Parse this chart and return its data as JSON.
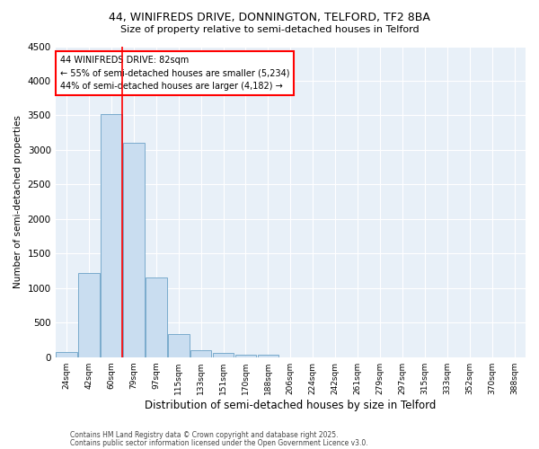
{
  "title1": "44, WINIFREDS DRIVE, DONNINGTON, TELFORD, TF2 8BA",
  "title2": "Size of property relative to semi-detached houses in Telford",
  "xlabel": "Distribution of semi-detached houses by size in Telford",
  "ylabel": "Number of semi-detached properties",
  "categories": [
    "24sqm",
    "42sqm",
    "60sqm",
    "79sqm",
    "97sqm",
    "115sqm",
    "133sqm",
    "151sqm",
    "170sqm",
    "188sqm",
    "206sqm",
    "224sqm",
    "242sqm",
    "261sqm",
    "279sqm",
    "297sqm",
    "315sqm",
    "333sqm",
    "352sqm",
    "370sqm",
    "388sqm"
  ],
  "values": [
    75,
    1220,
    3520,
    3100,
    1150,
    340,
    105,
    55,
    40,
    30,
    0,
    0,
    0,
    0,
    0,
    0,
    0,
    0,
    0,
    0,
    0
  ],
  "bar_color": "#c9ddf0",
  "bar_edgecolor": "#7aabcc",
  "vline_x": 2.5,
  "vline_color": "red",
  "annotation_title": "44 WINIFREDS DRIVE: 82sqm",
  "annotation_line1": "← 55% of semi-detached houses are smaller (5,234)",
  "annotation_line2": "44% of semi-detached houses are larger (4,182) →",
  "ylim": [
    0,
    4500
  ],
  "yticks": [
    0,
    500,
    1000,
    1500,
    2000,
    2500,
    3000,
    3500,
    4000,
    4500
  ],
  "footer1": "Contains HM Land Registry data © Crown copyright and database right 2025.",
  "footer2": "Contains public sector information licensed under the Open Government Licence v3.0.",
  "bg_color": "#e8f0f8"
}
